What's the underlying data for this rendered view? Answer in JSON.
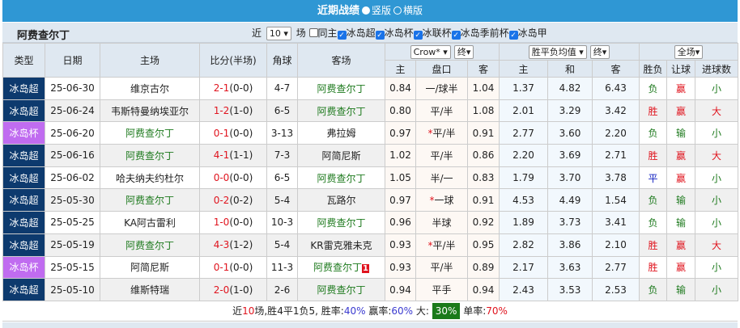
{
  "title": {
    "text": "近期战绩",
    "opt_vertical": "竖版",
    "opt_horizontal": "横版",
    "selected": "竖版"
  },
  "filter": {
    "team": "阿费查尔丁",
    "near_label": "近",
    "count": "10",
    "unit": "场",
    "same_home": "同主",
    "same_home_checked": false,
    "leagues": [
      {
        "label": "冰岛超",
        "checked": true
      },
      {
        "label": "冰岛杯",
        "checked": true
      },
      {
        "label": "冰联杯",
        "checked": true
      },
      {
        "label": "冰岛季前杯",
        "checked": true
      },
      {
        "label": "冰岛甲",
        "checked": true
      }
    ]
  },
  "headers": {
    "type": "类型",
    "date": "日期",
    "home": "主场",
    "score": "比分(半场)",
    "corner": "角球",
    "away": "客场",
    "company": "Crow*",
    "company_end": "终",
    "avg": "胜平负均值",
    "avg_end": "终",
    "scope": "全场",
    "sub": [
      "主",
      "盘口",
      "客",
      "主",
      "和",
      "客",
      "胜负",
      "让球",
      "进球数"
    ]
  },
  "colors": {
    "league": "#0d3a6e",
    "cup": "#c06cf0",
    "win": "#e0141e",
    "lose": "#1e7a1e",
    "draw": "#1020c0"
  },
  "rows": [
    {
      "type": "冰岛超",
      "date": "25-06-30",
      "home": "维京古尔",
      "ft": "2-1",
      "ht": "(0-0)",
      "corner": "4-7",
      "away": "阿费查尔丁",
      "team_side": "away",
      "h": "0.84",
      "line": "一/球半",
      "star": false,
      "a": "1.04",
      "w": "1.37",
      "d": "4.82",
      "l": "6.43",
      "res": "负",
      "ah": "赢",
      "ou": "小"
    },
    {
      "type": "冰岛超",
      "date": "25-06-24",
      "home": "韦斯特曼纳埃亚尔",
      "ft": "1-2",
      "ht": "(1-0)",
      "corner": "6-5",
      "away": "阿费查尔丁",
      "team_side": "away",
      "h": "0.80",
      "line": "平/半",
      "star": false,
      "a": "1.08",
      "w": "2.01",
      "d": "3.29",
      "l": "3.42",
      "res": "胜",
      "ah": "赢",
      "ou": "大"
    },
    {
      "type": "冰岛杯",
      "date": "25-06-20",
      "home": "阿费查尔丁",
      "ft": "0-1",
      "ht": "(0-0)",
      "corner": "3-13",
      "away": "弗拉姆",
      "team_side": "home",
      "h": "0.97",
      "line": "平/半",
      "star": true,
      "a": "0.91",
      "w": "2.77",
      "d": "3.60",
      "l": "2.20",
      "res": "负",
      "ah": "输",
      "ou": "小"
    },
    {
      "type": "冰岛超",
      "date": "25-06-16",
      "home": "阿费查尔丁",
      "ft": "4-1",
      "ht": "(1-1)",
      "corner": "7-3",
      "away": "阿简尼斯",
      "team_side": "home",
      "h": "1.02",
      "line": "平/半",
      "star": false,
      "a": "0.86",
      "w": "2.20",
      "d": "3.69",
      "l": "2.71",
      "res": "胜",
      "ah": "赢",
      "ou": "大"
    },
    {
      "type": "冰岛超",
      "date": "25-06-02",
      "home": "哈夫纳夫约杜尔",
      "ft": "0-0",
      "ht": "(0-0)",
      "corner": "6-5",
      "away": "阿费查尔丁",
      "team_side": "away",
      "h": "1.05",
      "line": "半/一",
      "star": false,
      "a": "0.83",
      "w": "1.79",
      "d": "3.70",
      "l": "3.78",
      "res": "平",
      "ah": "赢",
      "ou": "小"
    },
    {
      "type": "冰岛超",
      "date": "25-05-30",
      "home": "阿费查尔丁",
      "ft": "0-2",
      "ht": "(0-2)",
      "corner": "5-4",
      "away": "瓦路尔",
      "team_side": "home",
      "h": "0.97",
      "line": "一球",
      "star": true,
      "a": "0.91",
      "w": "4.53",
      "d": "4.49",
      "l": "1.54",
      "res": "负",
      "ah": "输",
      "ou": "小"
    },
    {
      "type": "冰岛超",
      "date": "25-05-25",
      "home": "KA阿古雷利",
      "ft": "1-0",
      "ht": "(0-0)",
      "corner": "10-3",
      "away": "阿费查尔丁",
      "team_side": "away",
      "h": "0.96",
      "line": "半球",
      "star": false,
      "a": "0.92",
      "w": "1.89",
      "d": "3.73",
      "l": "3.41",
      "res": "负",
      "ah": "输",
      "ou": "小"
    },
    {
      "type": "冰岛超",
      "date": "25-05-19",
      "home": "阿费查尔丁",
      "ft": "4-3",
      "ht": "(1-2)",
      "corner": "5-4",
      "away": "KR雷克雅未克",
      "team_side": "home",
      "h": "0.93",
      "line": "平/半",
      "star": true,
      "a": "0.95",
      "w": "2.82",
      "d": "3.86",
      "l": "2.10",
      "res": "胜",
      "ah": "赢",
      "ou": "大"
    },
    {
      "type": "冰岛杯",
      "date": "25-05-15",
      "home": "阿简尼斯",
      "ft": "0-1",
      "ht": "(0-0)",
      "corner": "11-3",
      "away": "阿费查尔丁",
      "team_side": "away",
      "card": "1",
      "h": "0.93",
      "line": "平/半",
      "star": false,
      "a": "0.89",
      "w": "2.17",
      "d": "3.63",
      "l": "2.77",
      "res": "胜",
      "ah": "赢",
      "ou": "小"
    },
    {
      "type": "冰岛超",
      "date": "25-05-10",
      "home": "维斯特瑞",
      "ft": "2-0",
      "ht": "(1-0)",
      "corner": "2-6",
      "away": "阿费查尔丁",
      "team_side": "away",
      "h": "0.94",
      "line": "平手",
      "star": false,
      "a": "0.94",
      "w": "2.43",
      "d": "3.53",
      "l": "2.53",
      "res": "负",
      "ah": "输",
      "ou": "小"
    }
  ],
  "summary": {
    "p1": "近",
    "n": "10",
    "p2": "场,胜",
    "win": "4",
    "p3": "平",
    "draw": "1",
    "p4": "负",
    "lose": "5",
    "p5": ", 胜率:",
    "win_rate": "40%",
    "p6": " 赢率:",
    "ah_rate": "60%",
    "p7": " 大:",
    "over_rate": "30%",
    "p8": " 单率:",
    "odd_rate": "70%"
  }
}
